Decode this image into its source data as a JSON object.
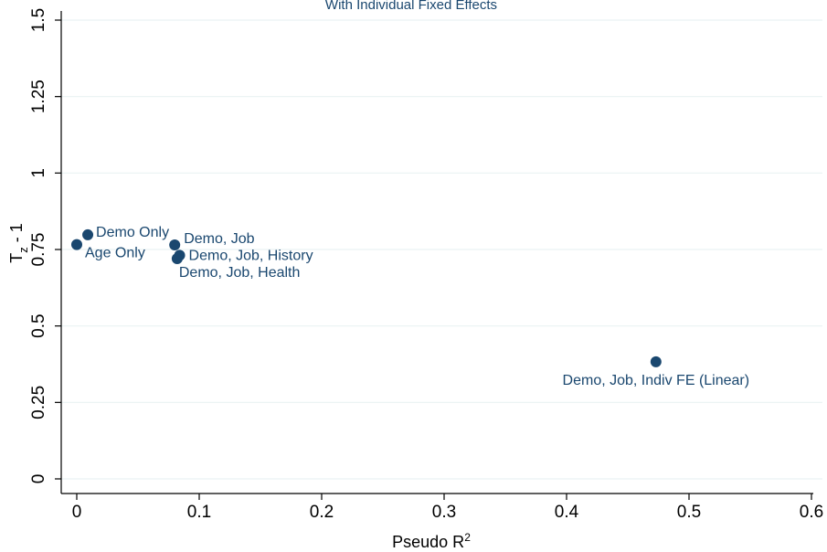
{
  "chart_data": {
    "type": "scatter",
    "subtitle": "With Individual Fixed Effects",
    "xlabel": "Pseudo R",
    "xlabel_sup": "2",
    "ylabel_main": "T",
    "ylabel_sub": "z",
    "ylabel_rest": " - 1",
    "xlim": [
      0,
      0.6
    ],
    "ylim": [
      0,
      1.5
    ],
    "xticks": [
      "0",
      "0.1",
      "0.2",
      "0.3",
      "0.4",
      "0.5",
      "0.6"
    ],
    "yticks": [
      "0",
      "0.25",
      "0.5",
      "0.75",
      "1",
      "1.25",
      "1.5"
    ],
    "grid": true,
    "colors": {
      "marker": "#1a476f",
      "grid": "#eaf2f3"
    },
    "points": [
      {
        "label": "Age Only",
        "x": 0.0,
        "y": 0.766
      },
      {
        "label": "Demo Only",
        "x": 0.009,
        "y": 0.798
      },
      {
        "label": "Demo, Job",
        "x": 0.08,
        "y": 0.765
      },
      {
        "label": "Demo, Job, History",
        "x": 0.084,
        "y": 0.731
      },
      {
        "label": "Demo, Job, Health",
        "x": 0.082,
        "y": 0.72
      },
      {
        "label": "Demo, Job, Indiv FE (Linear)",
        "x": 0.473,
        "y": 0.383
      }
    ]
  }
}
